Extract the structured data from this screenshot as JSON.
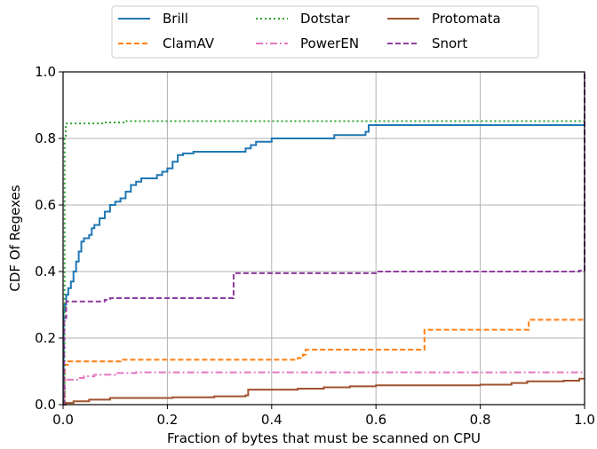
{
  "chart_data": {
    "type": "line",
    "title": "",
    "xlabel": "Fraction of bytes that must be scanned on CPU",
    "ylabel": "CDF Of Regexes",
    "xlim": [
      0,
      1
    ],
    "ylim": [
      0,
      1
    ],
    "xticks": [
      "0.0",
      "0.2",
      "0.4",
      "0.6",
      "0.8",
      "1.0"
    ],
    "yticks": [
      "0.0",
      "0.2",
      "0.4",
      "0.6",
      "0.8",
      "1.0"
    ],
    "grid": true,
    "legend_position": "top-center",
    "series": [
      {
        "name": "Brill",
        "color": "#1f77b4",
        "dash": "solid",
        "points": [
          [
            0,
            0
          ],
          [
            0.001,
            0.28
          ],
          [
            0.003,
            0.3
          ],
          [
            0.006,
            0.33
          ],
          [
            0.01,
            0.35
          ],
          [
            0.015,
            0.37
          ],
          [
            0.02,
            0.4
          ],
          [
            0.025,
            0.43
          ],
          [
            0.03,
            0.46
          ],
          [
            0.035,
            0.49
          ],
          [
            0.04,
            0.5
          ],
          [
            0.05,
            0.51
          ],
          [
            0.055,
            0.53
          ],
          [
            0.06,
            0.54
          ],
          [
            0.07,
            0.56
          ],
          [
            0.08,
            0.58
          ],
          [
            0.09,
            0.6
          ],
          [
            0.1,
            0.61
          ],
          [
            0.11,
            0.62
          ],
          [
            0.12,
            0.64
          ],
          [
            0.13,
            0.66
          ],
          [
            0.14,
            0.67
          ],
          [
            0.15,
            0.68
          ],
          [
            0.18,
            0.69
          ],
          [
            0.19,
            0.7
          ],
          [
            0.2,
            0.71
          ],
          [
            0.21,
            0.73
          ],
          [
            0.22,
            0.75
          ],
          [
            0.23,
            0.755
          ],
          [
            0.25,
            0.76
          ],
          [
            0.27,
            0.76
          ],
          [
            0.31,
            0.76
          ],
          [
            0.35,
            0.77
          ],
          [
            0.36,
            0.78
          ],
          [
            0.37,
            0.79
          ],
          [
            0.4,
            0.8
          ],
          [
            0.51,
            0.8
          ],
          [
            0.52,
            0.81
          ],
          [
            0.58,
            0.82
          ],
          [
            0.586,
            0.84
          ],
          [
            1,
            0.843
          ]
        ]
      },
      {
        "name": "ClamAV",
        "color": "#ff7f0e",
        "dash": "dashed",
        "points": [
          [
            0,
            0
          ],
          [
            0.003,
            0.12
          ],
          [
            0.01,
            0.13
          ],
          [
            0.1,
            0.13
          ],
          [
            0.11,
            0.135
          ],
          [
            0.44,
            0.135
          ],
          [
            0.45,
            0.14
          ],
          [
            0.46,
            0.15
          ],
          [
            0.465,
            0.165
          ],
          [
            0.69,
            0.165
          ],
          [
            0.693,
            0.225
          ],
          [
            0.89,
            0.225
          ],
          [
            0.893,
            0.255
          ],
          [
            1,
            0.255
          ]
        ]
      },
      {
        "name": "PowerEN",
        "color": "#e377c2",
        "dash": "dashdot",
        "points": [
          [
            0,
            0
          ],
          [
            0.003,
            0.075
          ],
          [
            0.03,
            0.08
          ],
          [
            0.04,
            0.085
          ],
          [
            0.06,
            0.09
          ],
          [
            0.1,
            0.095
          ],
          [
            0.14,
            0.097
          ],
          [
            1,
            0.097
          ]
        ]
      },
      {
        "name": "Dotstar",
        "color": "#2ca02c",
        "dash": "dotted",
        "points": [
          [
            0,
            0
          ],
          [
            0.003,
            0.8
          ],
          [
            0.005,
            0.845
          ],
          [
            0.08,
            0.848
          ],
          [
            0.12,
            0.852
          ],
          [
            1,
            0.852
          ]
        ]
      },
      {
        "name": "Protomata",
        "color": "#a0522d",
        "dash": "solid",
        "points": [
          [
            0,
            0
          ],
          [
            0.005,
            0.005
          ],
          [
            0.02,
            0.01
          ],
          [
            0.05,
            0.015
          ],
          [
            0.09,
            0.02
          ],
          [
            0.21,
            0.022
          ],
          [
            0.29,
            0.025
          ],
          [
            0.35,
            0.028
          ],
          [
            0.355,
            0.045
          ],
          [
            0.45,
            0.048
          ],
          [
            0.5,
            0.052
          ],
          [
            0.55,
            0.055
          ],
          [
            0.6,
            0.058
          ],
          [
            0.8,
            0.06
          ],
          [
            0.86,
            0.065
          ],
          [
            0.89,
            0.07
          ],
          [
            0.96,
            0.072
          ],
          [
            0.99,
            0.078
          ],
          [
            1,
            0.078
          ]
        ]
      },
      {
        "name": "Snort",
        "color": "#8c3d9e",
        "dash": "dashed",
        "points": [
          [
            0,
            0
          ],
          [
            0.002,
            0.26
          ],
          [
            0.006,
            0.31
          ],
          [
            0.08,
            0.315
          ],
          [
            0.09,
            0.32
          ],
          [
            0.325,
            0.32
          ],
          [
            0.327,
            0.395
          ],
          [
            0.58,
            0.395
          ],
          [
            0.6,
            0.4
          ],
          [
            0.98,
            0.4
          ],
          [
            0.99,
            0.403
          ],
          [
            1,
            0.403
          ],
          [
            1,
            1
          ]
        ]
      }
    ]
  }
}
